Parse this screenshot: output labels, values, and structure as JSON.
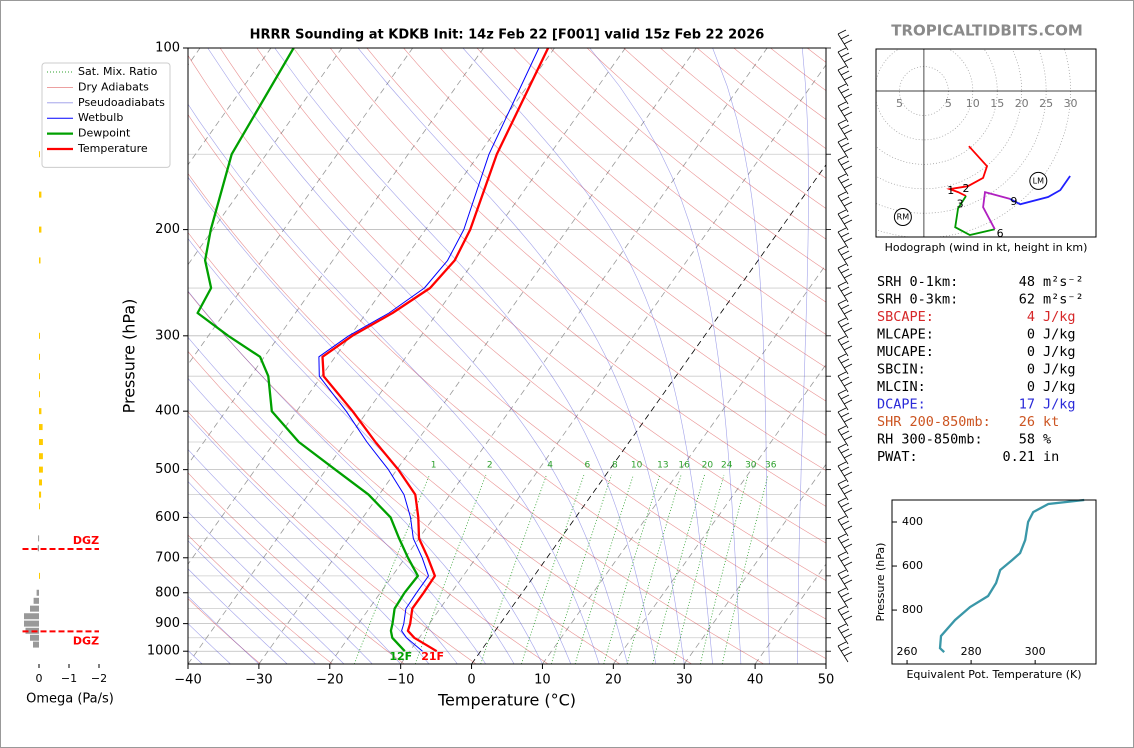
{
  "site": "TROPICALTIDBITS.COM",
  "chart_data": [
    {
      "type": "skewt",
      "title": "HRRR Sounding at KDKB Init: 14z Feb 22 [F001] valid 15z Feb 22 2026",
      "xlabel": "Temperature (°C)",
      "ylabel": "Pressure (hPa)",
      "xlim": [
        -40,
        50
      ],
      "xticks": [
        {
          "value": -40,
          "label": "−40"
        },
        {
          "value": -30,
          "label": "−30"
        },
        {
          "value": -20,
          "label": "−20"
        },
        {
          "value": -10,
          "label": "−10"
        },
        0,
        10,
        20,
        30,
        40,
        50
      ],
      "ylim": [
        1050,
        100
      ],
      "log_y": true,
      "yticks": [
        100,
        200,
        300,
        400,
        500,
        600,
        700,
        800,
        900,
        1000
      ],
      "yticks_minor": [
        150,
        250,
        350,
        450,
        550,
        650,
        750,
        850,
        950
      ],
      "pressure": [
        1000,
        950,
        925,
        900,
        850,
        800,
        750,
        700,
        650,
        600,
        550,
        500,
        450,
        400,
        350,
        325,
        300,
        275,
        250,
        225,
        200,
        150,
        100
      ],
      "series": [
        {
          "name": "Wetbulb",
          "color": "#0000ff",
          "values": [
            -8.2,
            -11.8,
            -13.2,
            -13.6,
            -14.8,
            -14.9,
            -14.9,
            -17.6,
            -20.8,
            -23.3,
            -26.5,
            -31.2,
            -37,
            -43,
            -50.3,
            -52.3,
            -50.2,
            -46.8,
            -44.3,
            -43.8,
            -44.6,
            -48.6,
            -52.2
          ]
        },
        {
          "name": "Dewpoint",
          "color": "#00a000",
          "surface_label": "12F",
          "values": [
            -10.7,
            -13.8,
            -14.7,
            -15.2,
            -16.4,
            -16.6,
            -16.4,
            -19.6,
            -22.8,
            -26.1,
            -31.5,
            -38.7,
            -46.6,
            -53.5,
            -57.5,
            -60.6,
            -67.2,
            -73.8,
            -74.4,
            -78,
            -80.3,
            -84.9,
            -86.8
          ]
        },
        {
          "name": "Temperature",
          "color": "#ff0000",
          "surface_label": "21F",
          "values": [
            -6.2,
            -10.7,
            -12.3,
            -12.7,
            -13.9,
            -13.9,
            -14,
            -16.8,
            -20,
            -22.2,
            -24.9,
            -29.8,
            -35.8,
            -42.1,
            -49.7,
            -51.8,
            -49.7,
            -46.3,
            -43.5,
            -42.8,
            -43.7,
            -47.5,
            -50.9
          ]
        }
      ],
      "reference_lines": [
        {
          "name": "Sat. Mix. Ratio",
          "color": "#2ca02c"
        },
        {
          "name": "Dry Adiabats",
          "color": "#d62728"
        },
        {
          "name": "Pseudoadiabats",
          "color": "#3030d0"
        }
      ],
      "mixing_ratios": [
        1,
        2,
        4,
        6,
        8,
        10,
        13,
        16,
        20,
        24,
        30,
        36
      ]
    },
    {
      "type": "bar",
      "orientation": "horizontal",
      "xlabel": "Omega (Pa/s)",
      "xlim": [
        0.55,
        -2
      ],
      "xticks": [
        0,
        {
          "value": -1,
          "label": "−1"
        },
        {
          "value": -2,
          "label": "−2"
        }
      ],
      "ylim": [
        1050,
        100
      ],
      "log_y": true,
      "pressure": [
        150,
        175,
        200,
        225,
        300,
        325,
        350,
        375,
        400,
        425,
        450,
        475,
        500,
        525,
        550,
        575,
        650,
        675,
        750,
        800,
        825,
        850,
        875,
        900,
        925,
        950,
        975
      ],
      "values": [
        -0.03,
        -0.08,
        -0.08,
        -0.05,
        -0.02,
        -0.02,
        -0.02,
        -0.03,
        -0.08,
        -0.12,
        -0.13,
        -0.13,
        -0.13,
        -0.1,
        -0.07,
        -0.03,
        0.03,
        0.04,
        -0.02,
        0.08,
        0.18,
        0.3,
        0.5,
        0.5,
        0.45,
        0.3,
        0.2
      ],
      "color_rising": "#ffcc00",
      "color_sinking": "#999999",
      "dgz_color": "#ff0000",
      "dgz": [
        {
          "label": "DGZ",
          "pressure": 677
        },
        {
          "label": "DGZ",
          "pressure": 927
        }
      ]
    },
    {
      "type": "hodograph",
      "caption": "Hodograph (wind in kt, height in km)",
      "xlim": [
        -9.8,
        35.2
      ],
      "ylim": [
        -29.9,
        8.6
      ],
      "xticks": [
        {
          "value": -5,
          "label": "5"
        },
        5,
        10,
        15,
        20,
        25,
        30
      ],
      "series": [
        {
          "color": "#ff0000",
          "u": [
            9.2,
            12.9,
            12.1,
            9.0,
            5.3,
            7.0,
            8.6
          ],
          "v": [
            -11.3,
            -15.4,
            -17.8,
            -19.5,
            -20.1,
            -20.7,
            -21.5
          ]
        },
        {
          "color": "#009900",
          "u": [
            8.6,
            7.0,
            6.4,
            9.4,
            14.5
          ],
          "v": [
            -21.5,
            -24.0,
            -27.9,
            -29.5,
            -28.3
          ]
        },
        {
          "color": "#b020c0",
          "u": [
            14.5,
            12.1,
            12.5,
            17.6
          ],
          "v": [
            -28.3,
            -23.8,
            -20.7,
            -22.1
          ]
        },
        {
          "color": "#2020ff",
          "u": [
            17.6,
            19.7,
            25.4,
            27.9,
            29.9
          ],
          "v": [
            -22.1,
            -23.2,
            -21.7,
            -20.3,
            -17.4
          ]
        }
      ],
      "height_labels": [
        {
          "label": "1",
          "u": 5.5,
          "v": -20.5
        },
        {
          "label": "2",
          "u": 8.6,
          "v": -20.1
        },
        {
          "label": "3",
          "u": 7.4,
          "v": -23.2
        },
        {
          "label": "6",
          "u": 15.6,
          "v": -29.3
        },
        {
          "label": "9",
          "u": 18.4,
          "v": -22.7
        }
      ],
      "storm_motion": [
        {
          "label": "RM",
          "u": -4.3,
          "v": -25.8
        },
        {
          "label": "LM",
          "u": 23.4,
          "v": -18.4
        }
      ]
    },
    {
      "type": "line",
      "xlabel": "Equivalent Pot. Temperature (K)",
      "ylabel": "Pressure (hPa)",
      "xlim": [
        255.3,
        319
      ],
      "ylim": [
        1045,
        300
      ],
      "xticks": [
        260,
        280,
        300
      ],
      "yticks": [
        400,
        600,
        800
      ],
      "color": "#3a97a8",
      "pressure": [
        991,
        973,
        918,
        845,
        786,
        736,
        677,
        618,
        573,
        541,
        482,
        400,
        355,
        318,
        300
      ],
      "values": [
        271.6,
        270.3,
        270.6,
        275,
        279.7,
        285.3,
        287.8,
        289.1,
        292.8,
        295.3,
        296.9,
        297.8,
        299.4,
        304.1,
        315.3
      ]
    }
  ],
  "stats": {
    "rows": [
      {
        "label": "SRH 0-1km:",
        "value": 48,
        "unit": "m²s⁻²"
      },
      {
        "label": "SRH 0-3km:",
        "value": 62,
        "unit": "m²s⁻²"
      },
      {
        "label": "SBCAPE:",
        "value": 4,
        "unit": "J/kg",
        "color": "#d62728"
      },
      {
        "label": "MLCAPE:",
        "value": 0,
        "unit": "J/kg"
      },
      {
        "label": "MUCAPE:",
        "value": 0,
        "unit": "J/kg"
      },
      {
        "label": "SBCIN:",
        "value": 0,
        "unit": "J/kg"
      },
      {
        "label": "MLCIN:",
        "value": 0,
        "unit": "J/kg"
      },
      {
        "label": "DCAPE:",
        "value": 17,
        "unit": "J/kg",
        "color": "#2a2ad8"
      },
      {
        "label": "SHR 200-850mb:",
        "value": 26,
        "unit": "kt",
        "color": "#cc5522"
      },
      {
        "label": "RH 300-850mb:",
        "value": 58,
        "unit": "%"
      },
      {
        "label": "PWAT:",
        "value": 0.21,
        "unit": "in"
      }
    ]
  }
}
